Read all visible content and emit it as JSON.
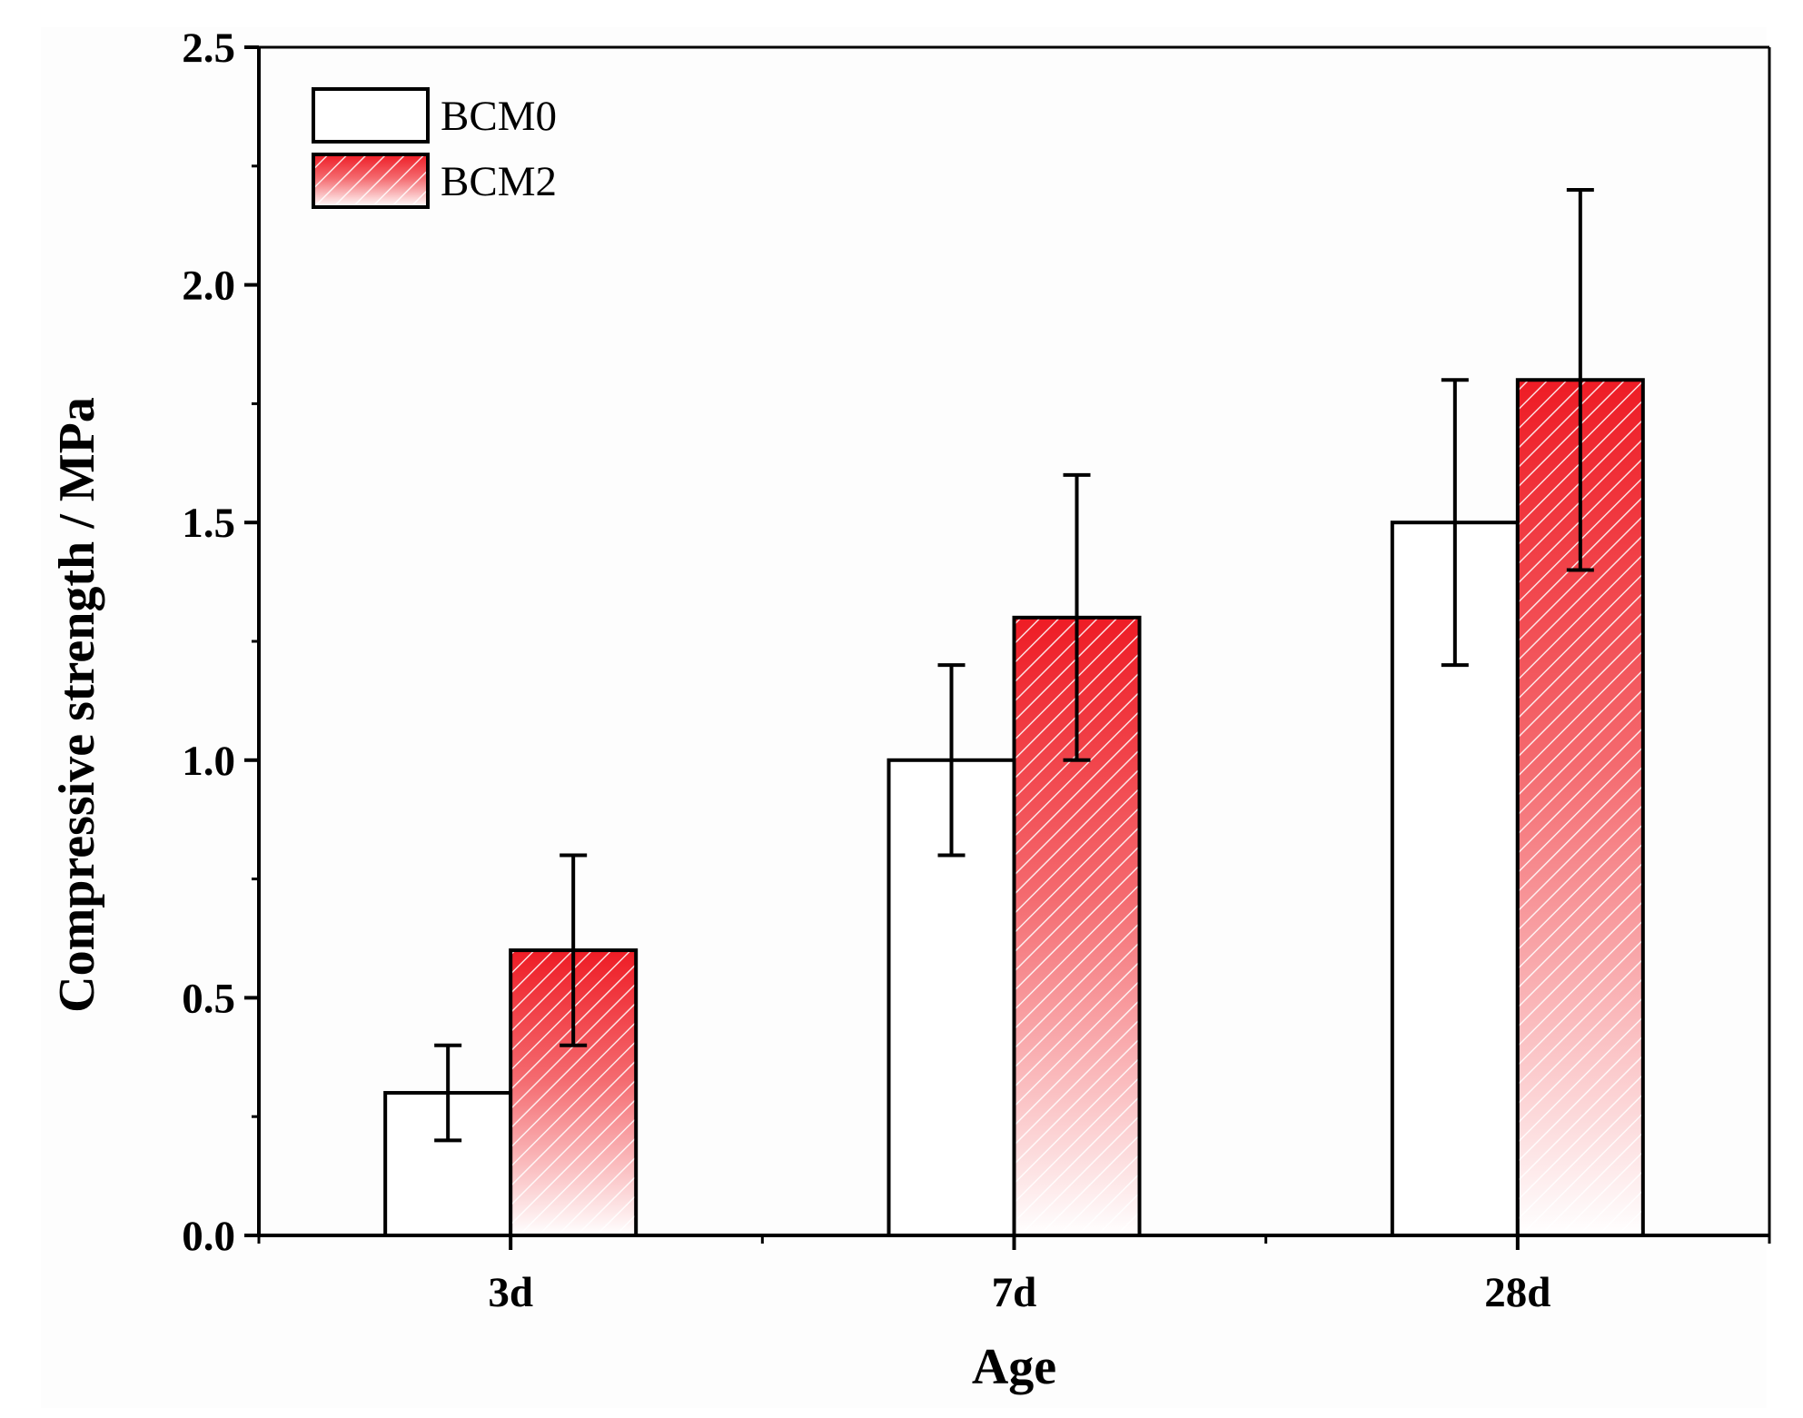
{
  "chart_data": {
    "type": "bar",
    "title": "",
    "xlabel": "Age",
    "ylabel": "Compressive strength / MPa",
    "categories": [
      "3d",
      "7d",
      "28d"
    ],
    "ylim": [
      0.0,
      2.5
    ],
    "yticks": [
      "0.0",
      "0.5",
      "1.0",
      "1.5",
      "2.0",
      "2.5"
    ],
    "grid": false,
    "legend_position": "top-left",
    "series": [
      {
        "name": "BCM0",
        "fill": "#ffffff",
        "values": [
          0.3,
          1.0,
          1.5
        ],
        "errors": [
          0.1,
          0.2,
          0.3
        ]
      },
      {
        "name": "BCM2",
        "fill": "#e8222b",
        "values": [
          0.6,
          1.3,
          1.8
        ],
        "errors": [
          0.2,
          0.3,
          0.4
        ]
      }
    ]
  }
}
